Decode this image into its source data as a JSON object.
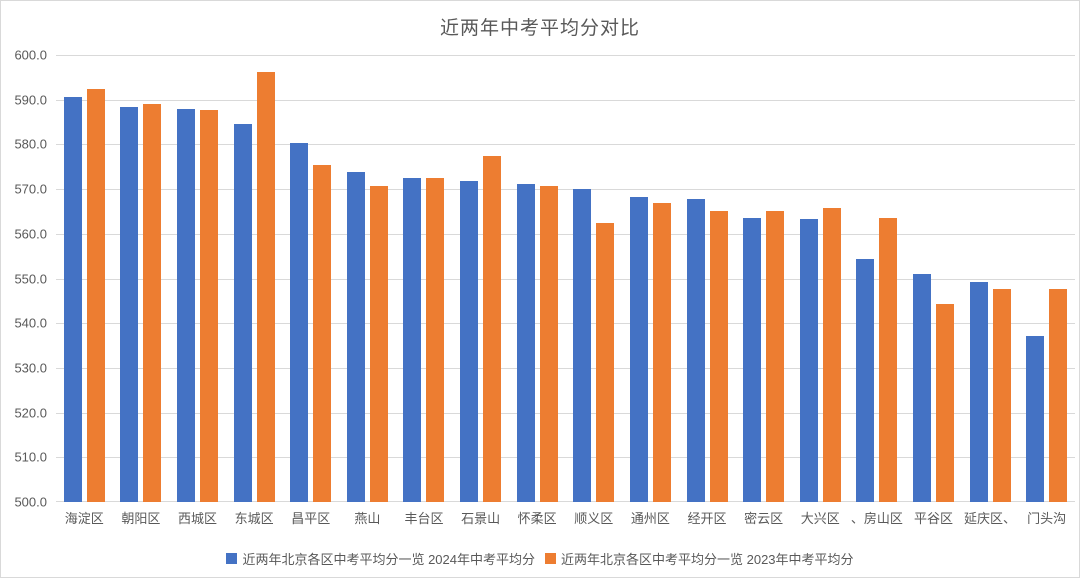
{
  "window": {
    "background_color": "#FFFFFF",
    "border_color": "#D9D9D9"
  },
  "chart_data": {
    "type": "bar",
    "title": "近两年中考平均分对比",
    "categories": [
      "海淀区",
      "朝阳区",
      "西城区",
      "东城区",
      "昌平区",
      "燕山",
      "丰台区",
      "石景山",
      "怀柔区",
      "顺义区",
      "通州区",
      "经开区",
      "密云区",
      "大兴区",
      "、房山区",
      "平谷区",
      "延庆区、",
      "门头沟"
    ],
    "series": [
      {
        "name": "近两年北京各区中考平均分一览 2024年中考平均分",
        "color": "#4472C4",
        "values": [
          590.6,
          588.4,
          588.0,
          584.5,
          580.3,
          573.9,
          572.4,
          571.8,
          571.2,
          570.1,
          568.2,
          567.7,
          563.5,
          563.3,
          554.3,
          551.0,
          549.2,
          537.1
        ]
      },
      {
        "name": "近两年北京各区中考平均分一览 2023年中考平均分",
        "color": "#ED7D31",
        "values": [
          592.3,
          589.1,
          587.6,
          596.2,
          575.4,
          570.6,
          572.4,
          577.4,
          570.8,
          562.4,
          567.0,
          565.0,
          565.0,
          565.8,
          563.6,
          544.3,
          547.7,
          547.6
        ]
      }
    ],
    "ylim": [
      500,
      600
    ],
    "ytick_step": 10,
    "yticks": [
      "600.0",
      "590.0",
      "580.0",
      "570.0",
      "560.0",
      "550.0",
      "540.0",
      "530.0",
      "520.0",
      "510.0",
      "500.0"
    ],
    "xlabel": "",
    "ylabel": "",
    "grid": true,
    "legend_position": "bottom",
    "axis_text_color": "#595959",
    "grid_color": "#D9D9D9"
  }
}
